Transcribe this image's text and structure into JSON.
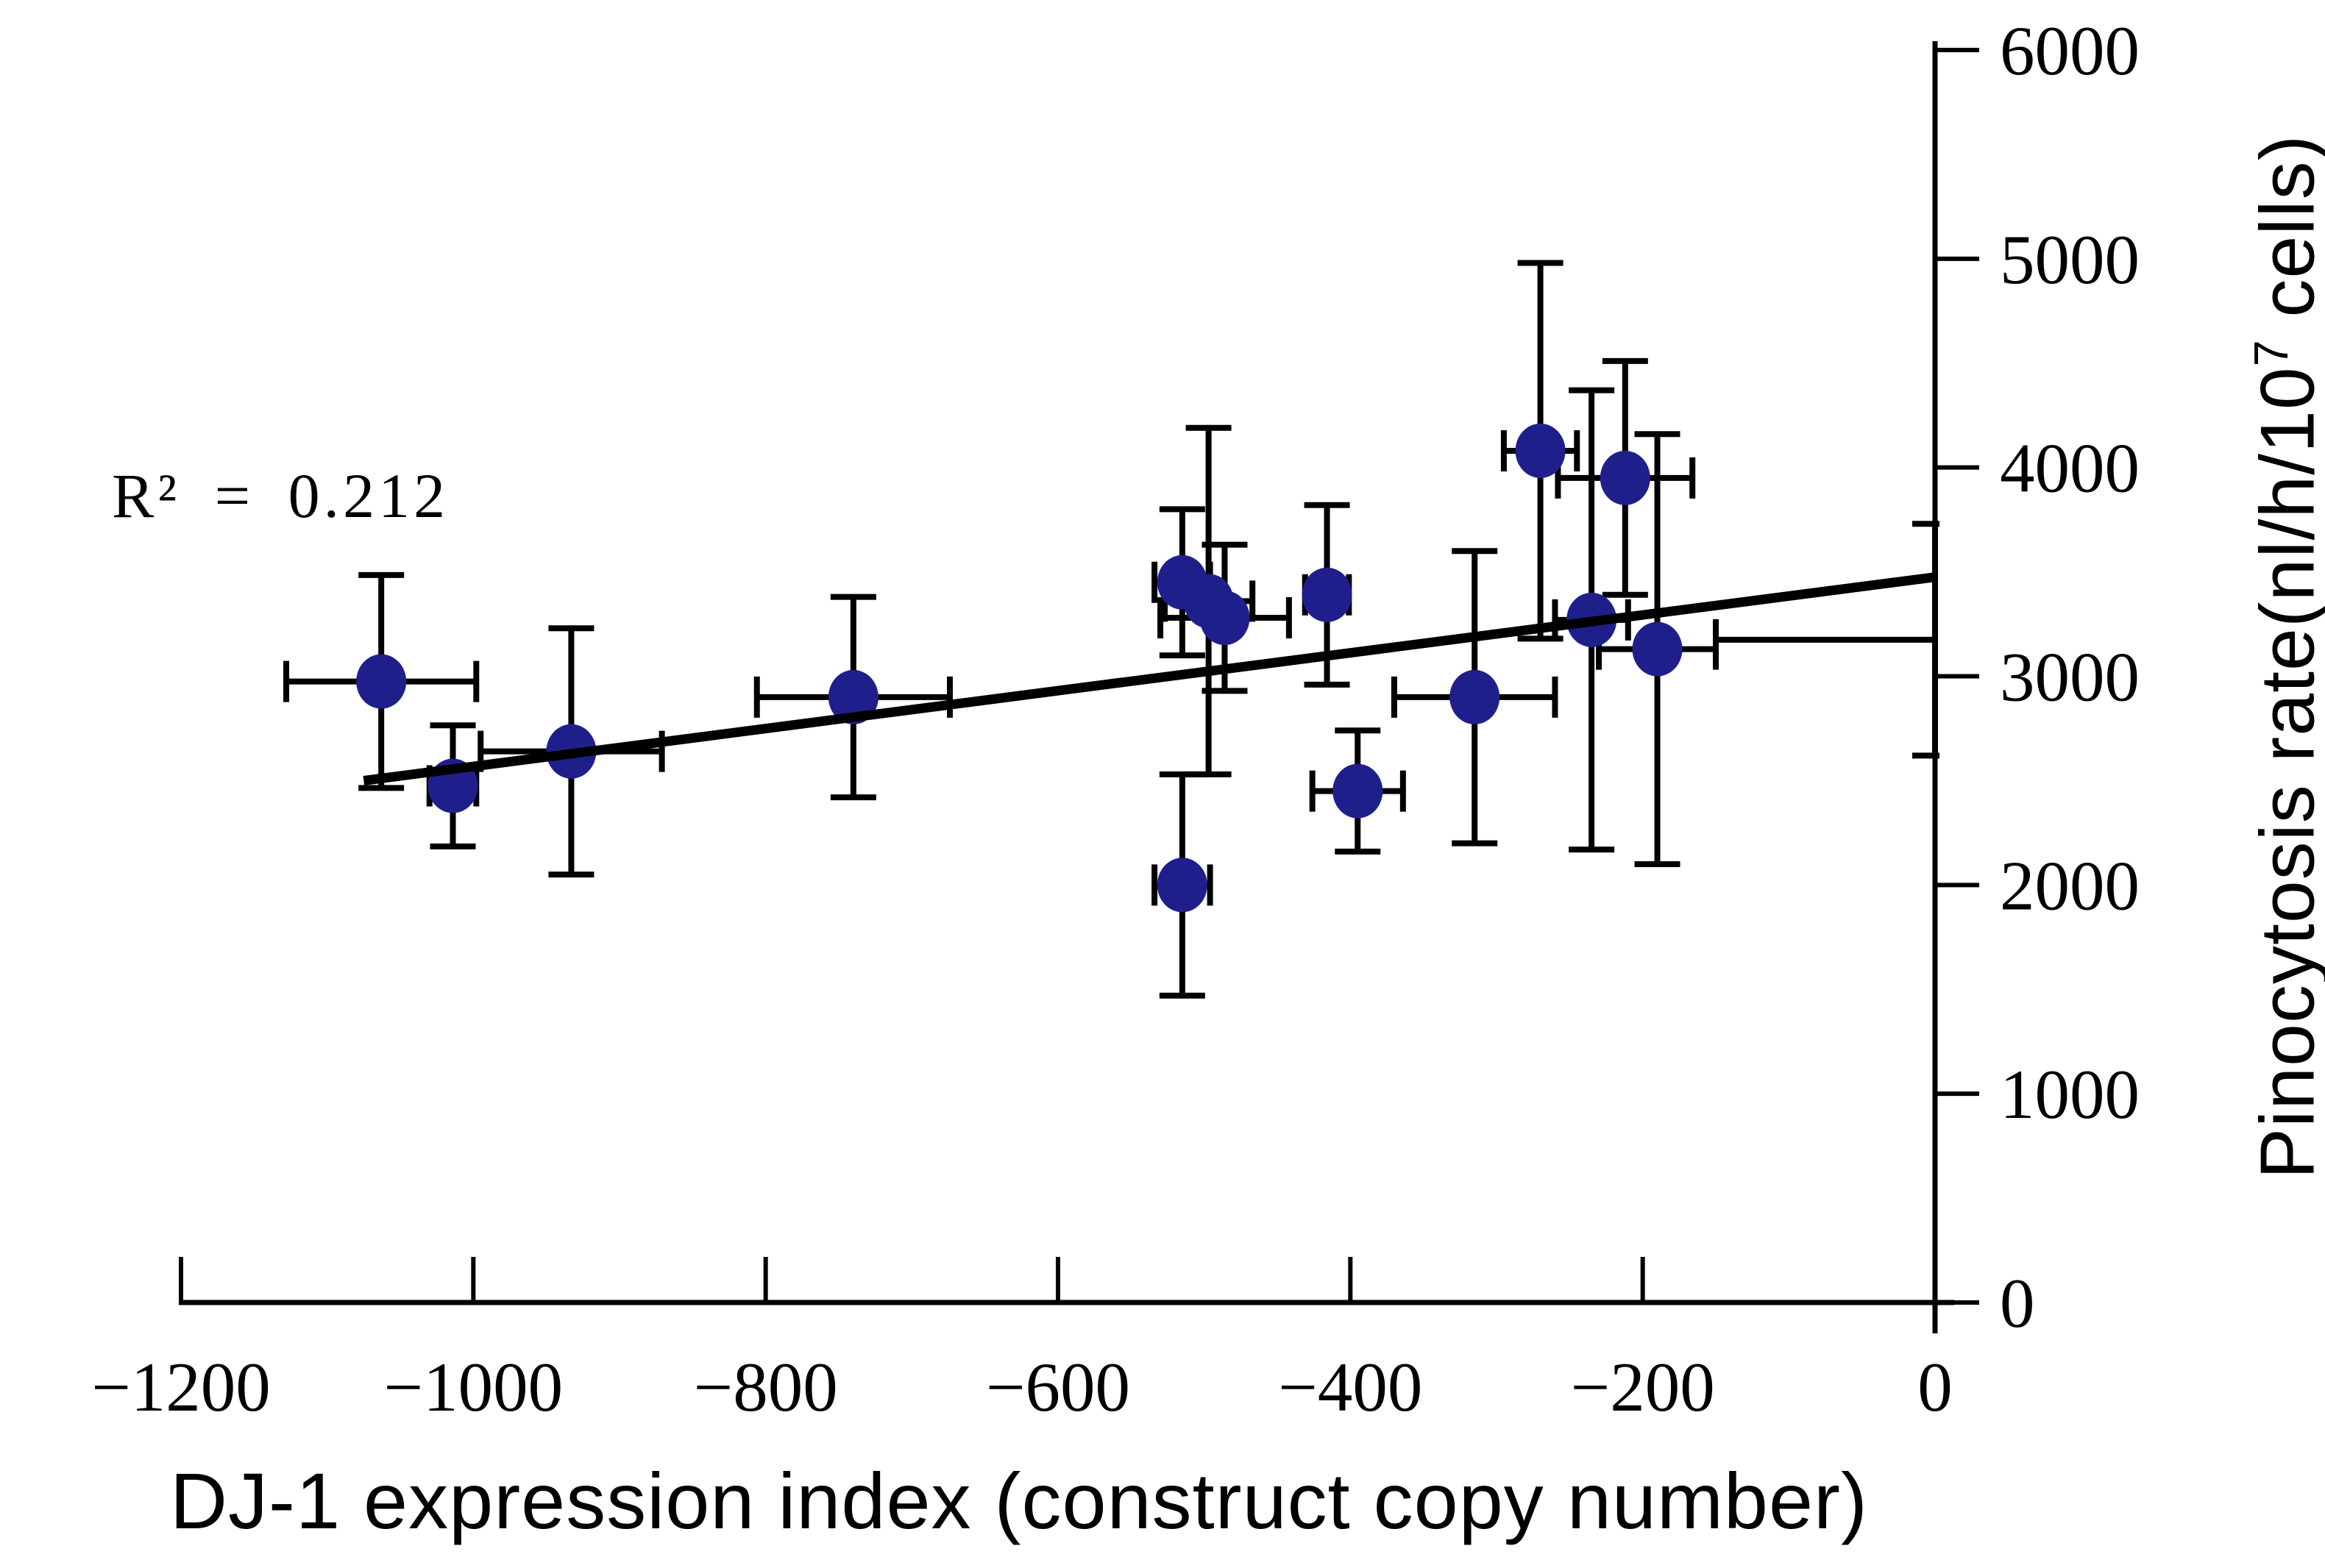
{
  "figure": {
    "annotation": "R² = 0.212",
    "xlabel": "DJ-1 expression index (construct copy number)",
    "ylabel_prefix": "Pinocytosis rate(nl/h/10",
    "ylabel_sup": "7",
    "ylabel_suffix": " cells)"
  },
  "chart_data": {
    "type": "scatter",
    "title": "",
    "xlabel": "DJ-1 expression index (construct copy number)",
    "ylabel": "Pinocytosis rate(nl/h/10^7 cells)",
    "annotation": "R² = 0.212",
    "r_squared": 0.212,
    "xlim": [
      -1200,
      0
    ],
    "ylim": [
      0,
      6000
    ],
    "x_ticks": [
      -1200,
      -1000,
      -800,
      -600,
      -400,
      -200,
      0
    ],
    "x_tick_labels": [
      "−1200",
      "−1000",
      "−800",
      "−600",
      "−400",
      "−200",
      "0"
    ],
    "y_ticks": [
      0,
      1000,
      2000,
      3000,
      4000,
      5000,
      6000
    ],
    "y_tick_labels": [
      "0",
      "1000",
      "2000",
      "3000",
      "4000",
      "5000",
      "6000"
    ],
    "grid": false,
    "legend": false,
    "y_axis_position": "right",
    "marker_color": "#1f1f8c",
    "axis_color": "#000000",
    "trend_color": "#000000",
    "trendline": {
      "x1": -1075,
      "y1": 2500,
      "x2": 0,
      "y2": 3475
    },
    "points": [
      {
        "x": -1063,
        "y": 2975,
        "ex": 65,
        "ey": 510
      },
      {
        "x": -1014,
        "y": 2475,
        "ex": 16,
        "ey": 290
      },
      {
        "x": -933,
        "y": 2640,
        "ex": 62,
        "ey": 590
      },
      {
        "x": -740,
        "y": 2900,
        "ex": 66,
        "ey": 480
      },
      {
        "x": -515,
        "y": 3450,
        "ex": 19,
        "ey": 350
      },
      {
        "x": -497,
        "y": 3360,
        "ex": 30,
        "ey": 830
      },
      {
        "x": -486,
        "y": 3280,
        "ex": 44,
        "ey": 350
      },
      {
        "x": -515,
        "y": 2000,
        "ex": 19,
        "ey": 530
      },
      {
        "x": -416,
        "y": 3390,
        "ex": 15,
        "ey": 430
      },
      {
        "x": -395,
        "y": 2450,
        "ex": 31,
        "ey": 290
      },
      {
        "x": -315,
        "y": 2900,
        "ex": 55,
        "ey": 700
      },
      {
        "x": -270,
        "y": 4080,
        "ex": 25,
        "ey": 900
      },
      {
        "x": -235,
        "y": 3270,
        "ex": 25,
        "ey": 1100
      },
      {
        "x": -212,
        "y": 3950,
        "ex": 46,
        "ey": 560
      },
      {
        "x": -190,
        "y": 3130,
        "ex": 40,
        "ey": 1030
      },
      {
        "x": 0,
        "y": 3175,
        "ex": 150,
        "ey": 555,
        "marker": false,
        "half_x": true
      }
    ]
  }
}
